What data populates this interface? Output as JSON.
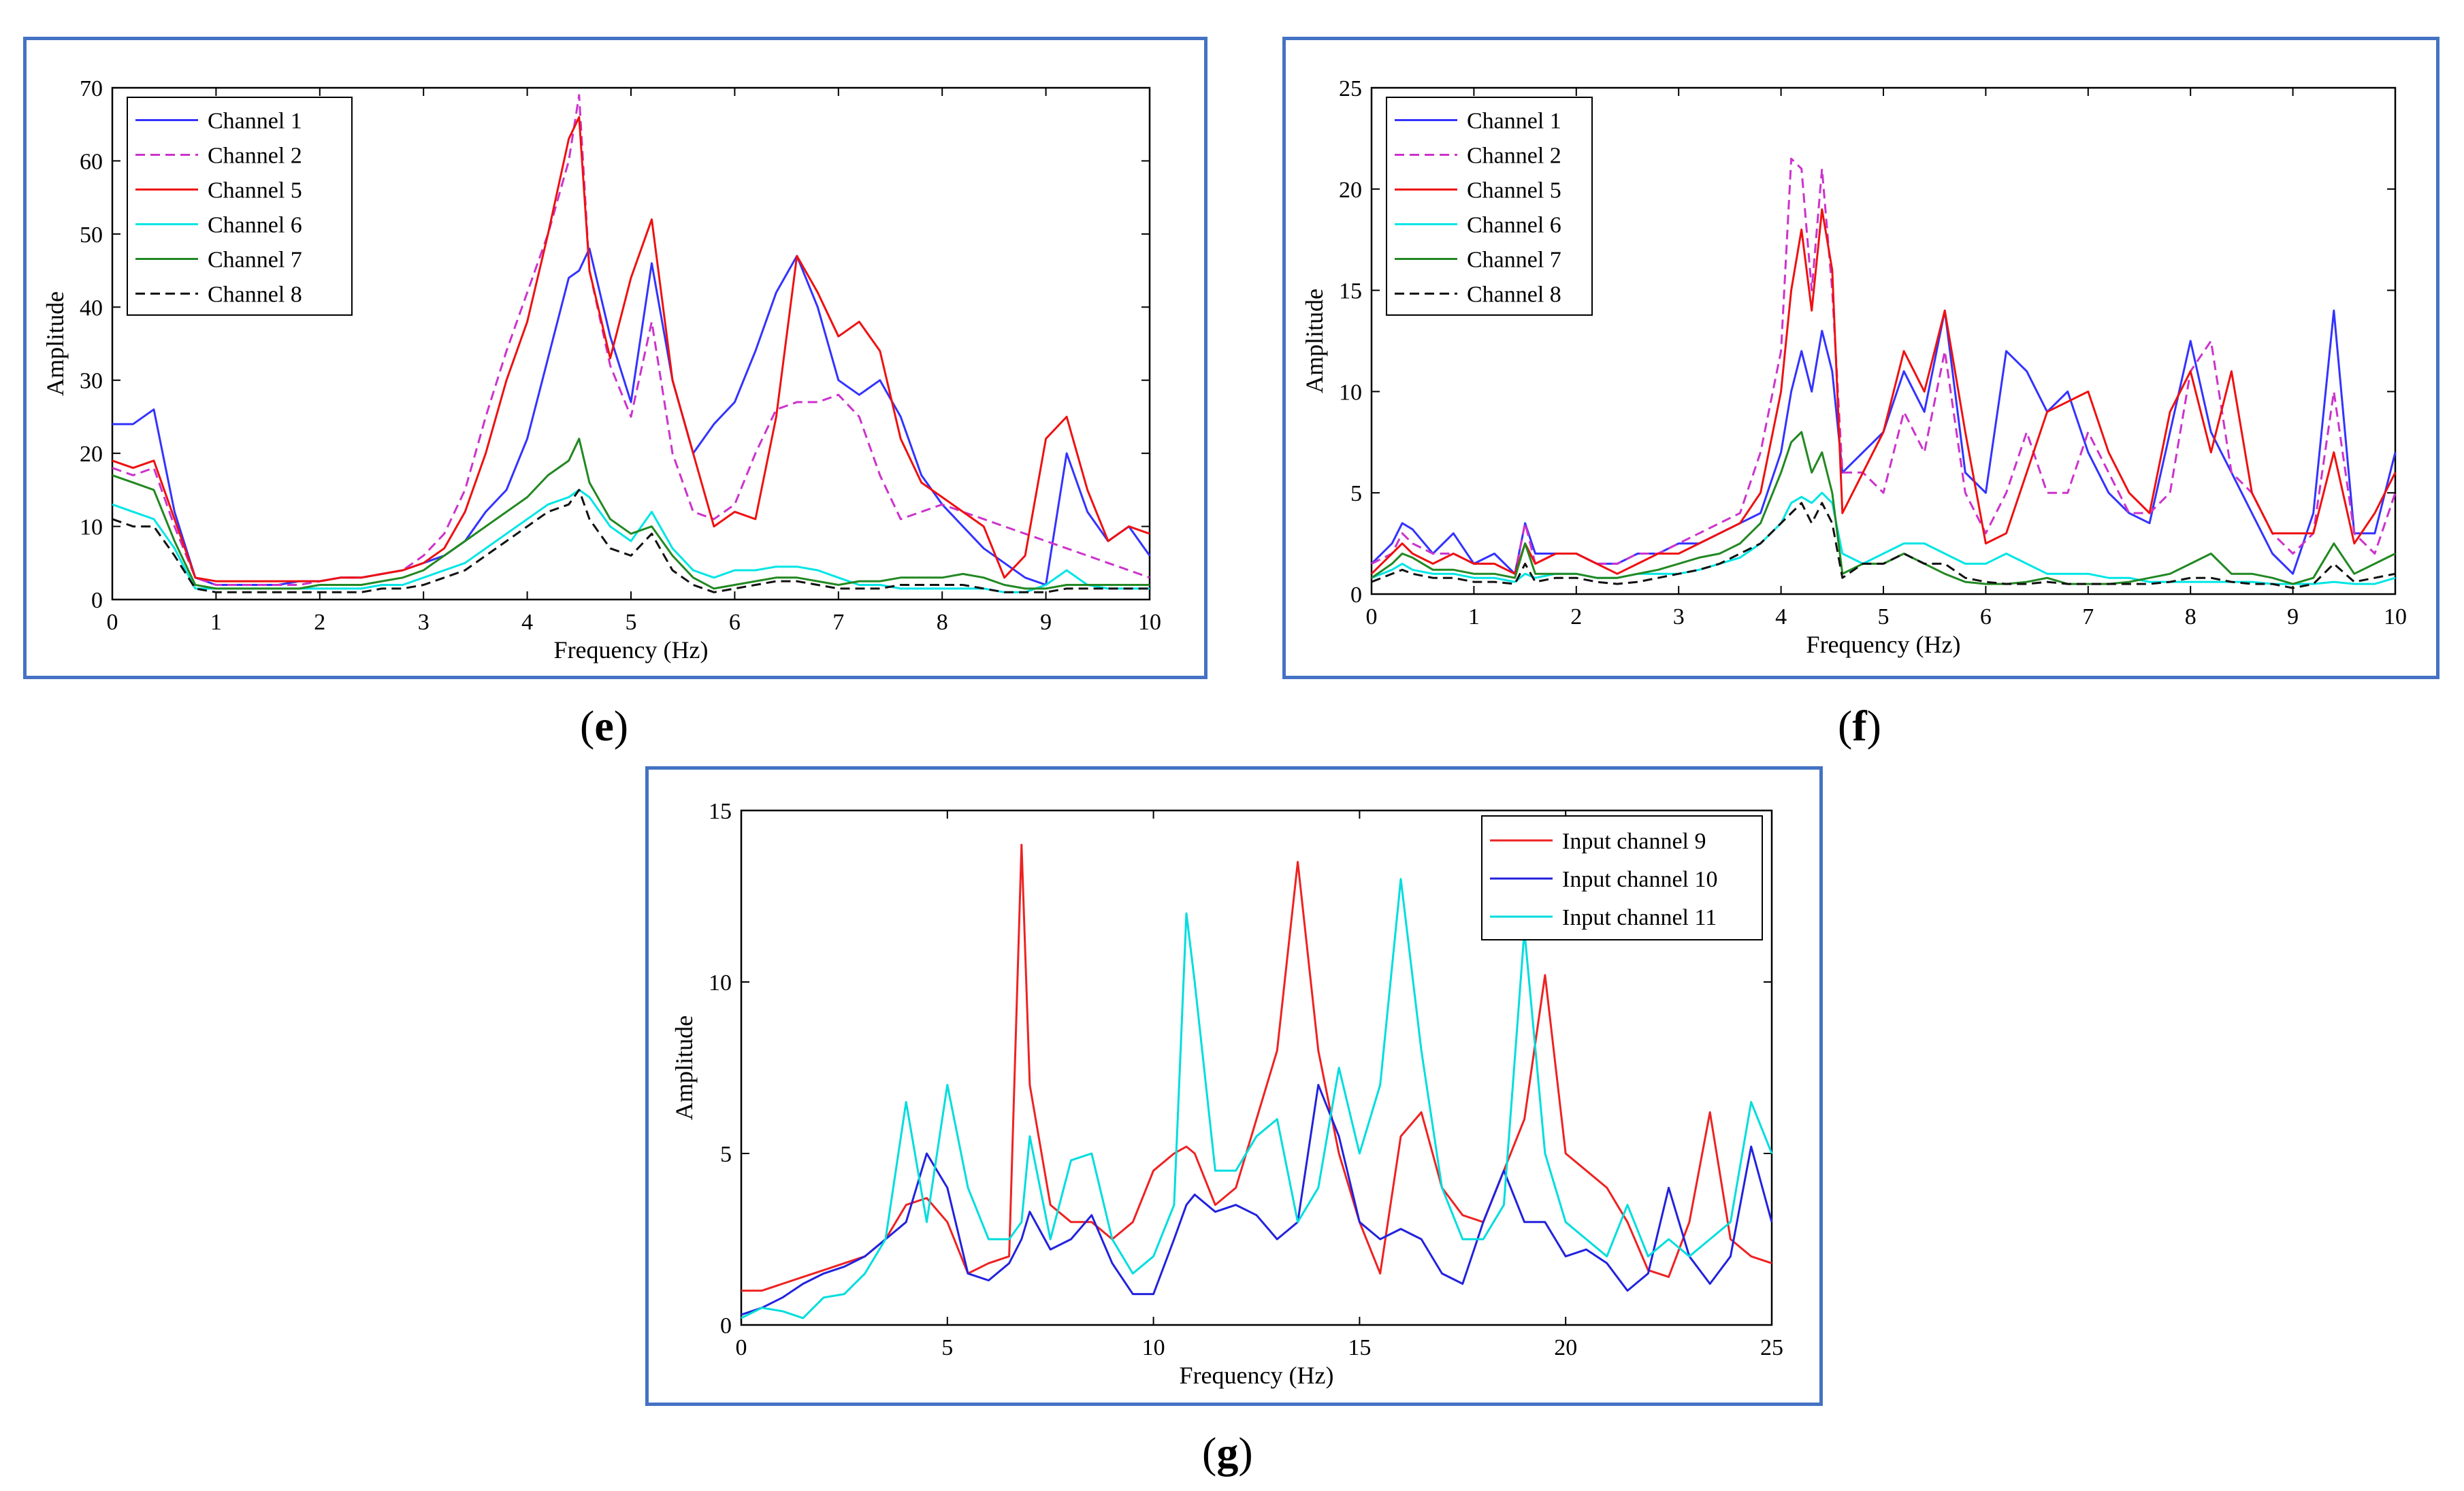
{
  "panels": {
    "e": {
      "caption": "e"
    },
    "f": {
      "caption": "f"
    },
    "g": {
      "caption": "g"
    }
  },
  "chart_data": [
    {
      "id": "e",
      "type": "line",
      "title": "",
      "xlabel": "Frequency (Hz)",
      "ylabel": "Amplitude",
      "xlim": [
        0,
        10
      ],
      "ylim": [
        0,
        70
      ],
      "xticks": [
        0,
        1,
        2,
        3,
        4,
        5,
        6,
        7,
        8,
        9,
        10
      ],
      "yticks": [
        0,
        10,
        20,
        30,
        40,
        50,
        60,
        70
      ],
      "legend_position": "top-left",
      "x": [
        0,
        0.2,
        0.4,
        0.6,
        0.8,
        1,
        1.2,
        1.4,
        1.6,
        1.8,
        2,
        2.2,
        2.4,
        2.6,
        2.8,
        3,
        3.2,
        3.4,
        3.6,
        3.8,
        4,
        4.2,
        4.4,
        4.5,
        4.6,
        4.8,
        5,
        5.2,
        5.4,
        5.6,
        5.8,
        6,
        6.2,
        6.4,
        6.6,
        6.8,
        7,
        7.2,
        7.4,
        7.6,
        7.8,
        8,
        8.2,
        8.4,
        8.6,
        8.8,
        9,
        9.2,
        9.4,
        9.6,
        9.8,
        10
      ],
      "series": [
        {
          "name": "Channel 1",
          "color": "#3333ff",
          "dash": "",
          "values": [
            24,
            24,
            26,
            12,
            3,
            2,
            2,
            2,
            2,
            2.5,
            2.5,
            3,
            3,
            3.5,
            4,
            5,
            6,
            8,
            12,
            15,
            22,
            33,
            44,
            45,
            48,
            36,
            27,
            46,
            30,
            20,
            24,
            27,
            34,
            42,
            47,
            40,
            30,
            28,
            30,
            25,
            17,
            13,
            10,
            7,
            5,
            3,
            2,
            20,
            12,
            8,
            10,
            6
          ]
        },
        {
          "name": "Channel 2",
          "color": "#cc33cc",
          "dash": "14,8",
          "values": [
            18,
            17,
            18,
            10,
            3,
            2,
            2,
            2,
            2,
            2,
            2.5,
            3,
            3,
            3.5,
            4,
            6,
            9,
            15,
            25,
            34,
            42,
            50,
            60,
            69,
            45,
            32,
            25,
            38,
            20,
            12,
            11,
            13,
            20,
            26,
            27,
            27,
            28,
            25,
            17,
            11,
            12,
            13,
            12,
            11,
            10,
            9,
            8,
            7,
            6,
            5,
            4,
            3
          ]
        },
        {
          "name": "Channel 5",
          "color": "#ee1111",
          "dash": "",
          "values": [
            19,
            18,
            19,
            11,
            3,
            2.5,
            2.5,
            2.5,
            2.5,
            2.5,
            2.5,
            3,
            3,
            3.5,
            4,
            5,
            7,
            12,
            20,
            30,
            38,
            50,
            63,
            66,
            45,
            33,
            44,
            52,
            30,
            20,
            10,
            12,
            11,
            25,
            47,
            42,
            36,
            38,
            34,
            22,
            16,
            14,
            12,
            10,
            3,
            6,
            22,
            25,
            15,
            8,
            10,
            9
          ]
        },
        {
          "name": "Channel 6",
          "color": "#00e5e5",
          "dash": "",
          "values": [
            13,
            12,
            11,
            7,
            1.5,
            1.5,
            1.5,
            1.5,
            1.5,
            1.5,
            1.5,
            1.5,
            1.5,
            2,
            2,
            3,
            4,
            5,
            7,
            9,
            11,
            13,
            14,
            15,
            14,
            10,
            8,
            12,
            7,
            4,
            3,
            4,
            4,
            4.5,
            4.5,
            4,
            3,
            2,
            2,
            1.5,
            1.5,
            1.5,
            1.5,
            1.5,
            1,
            1,
            2,
            4,
            2,
            1.5,
            1.5,
            1.5
          ]
        },
        {
          "name": "Channel 7",
          "color": "#228822",
          "dash": "",
          "values": [
            17,
            16,
            15,
            8,
            2,
            1.5,
            1.5,
            1.5,
            1.5,
            1.5,
            2,
            2,
            2,
            2.5,
            3,
            4,
            6,
            8,
            10,
            12,
            14,
            17,
            19,
            22,
            16,
            11,
            9,
            10,
            6,
            3,
            1.5,
            2,
            2.5,
            3,
            3,
            2.5,
            2,
            2.5,
            2.5,
            3,
            3,
            3,
            3.5,
            3,
            2,
            1.5,
            1.5,
            2,
            2,
            2,
            2,
            2
          ]
        },
        {
          "name": "Channel 8",
          "color": "#111111",
          "dash": "14,8",
          "values": [
            11,
            10,
            10,
            6,
            1.5,
            1,
            1,
            1,
            1,
            1,
            1,
            1,
            1,
            1.5,
            1.5,
            2,
            3,
            4,
            6,
            8,
            10,
            12,
            13,
            15,
            11,
            7,
            6,
            9,
            4,
            2,
            1,
            1.5,
            2,
            2.5,
            2.5,
            2,
            1.5,
            1.5,
            1.5,
            2,
            2,
            2,
            2,
            1.5,
            1,
            1,
            1,
            1.5,
            1.5,
            1.5,
            1.5,
            1.5
          ]
        }
      ]
    },
    {
      "id": "f",
      "type": "line",
      "title": "",
      "xlabel": "Frequency (Hz)",
      "ylabel": "Amplitude",
      "xlim": [
        0,
        10
      ],
      "ylim": [
        0,
        25
      ],
      "xticks": [
        0,
        1,
        2,
        3,
        4,
        5,
        6,
        7,
        8,
        9,
        10
      ],
      "yticks": [
        0,
        5,
        10,
        15,
        20,
        25
      ],
      "legend_position": "top-left",
      "x": [
        0,
        0.2,
        0.3,
        0.4,
        0.6,
        0.8,
        1,
        1.2,
        1.4,
        1.5,
        1.6,
        1.8,
        2,
        2.2,
        2.4,
        2.6,
        2.8,
        3,
        3.2,
        3.4,
        3.6,
        3.8,
        4,
        4.1,
        4.2,
        4.3,
        4.4,
        4.5,
        4.6,
        4.8,
        5,
        5.2,
        5.4,
        5.6,
        5.8,
        6,
        6.2,
        6.4,
        6.6,
        6.8,
        7,
        7.2,
        7.4,
        7.6,
        7.8,
        8,
        8.2,
        8.4,
        8.6,
        8.8,
        9,
        9.2,
        9.4,
        9.6,
        9.8,
        10
      ],
      "series": [
        {
          "name": "Channel 1",
          "color": "#3333ff",
          "dash": "",
          "values": [
            1.5,
            2.5,
            3.5,
            3.2,
            2,
            3,
            1.5,
            2,
            1,
            3.5,
            2,
            2,
            2,
            1.5,
            1.5,
            2,
            2,
            2.5,
            2.5,
            3,
            3.5,
            4,
            7,
            10,
            12,
            10,
            13,
            11,
            6,
            7,
            8,
            11,
            9,
            14,
            6,
            5,
            12,
            11,
            9,
            10,
            7,
            5,
            4,
            3.5,
            8,
            12.5,
            8,
            6,
            4,
            2,
            1,
            4,
            14,
            3,
            3,
            7
          ]
        },
        {
          "name": "Channel 2",
          "color": "#cc33cc",
          "dash": "14,8",
          "values": [
            1.5,
            2,
            3,
            2.5,
            2,
            2,
            1.5,
            1.5,
            1,
            3.5,
            1.5,
            2,
            2,
            1.5,
            1.5,
            2,
            2,
            2.5,
            3,
            3.5,
            4,
            7,
            12,
            21.5,
            21,
            15,
            21,
            15,
            6,
            6,
            5,
            9,
            7,
            12,
            5,
            3,
            5,
            8,
            5,
            5,
            8,
            6,
            4,
            4,
            5,
            11,
            12.5,
            6,
            5,
            3,
            2,
            3,
            10,
            3,
            2,
            5
          ]
        },
        {
          "name": "Channel 5",
          "color": "#ee1111",
          "dash": "",
          "values": [
            1,
            2,
            2.5,
            2,
            1.5,
            2,
            1.5,
            1.5,
            1,
            2.5,
            1.5,
            2,
            2,
            1.5,
            1,
            1.5,
            2,
            2,
            2.5,
            3,
            3.5,
            5,
            10,
            15,
            18,
            14,
            19,
            16,
            4,
            6,
            8,
            12,
            10,
            14,
            8,
            2.5,
            3,
            6,
            9,
            9.5,
            10,
            7,
            5,
            4,
            9,
            11,
            7,
            11,
            5,
            3,
            3,
            3,
            7,
            2.5,
            4,
            6
          ]
        },
        {
          "name": "Channel 6",
          "color": "#00e5e5",
          "dash": "",
          "values": [
            0.8,
            1.2,
            1.5,
            1.2,
            1,
            1,
            0.8,
            0.8,
            0.6,
            1,
            0.8,
            1,
            1,
            0.8,
            0.8,
            1,
            1,
            1,
            1.2,
            1.5,
            1.8,
            2.5,
            3.5,
            4.5,
            4.8,
            4.5,
            5,
            4.5,
            2,
            1.5,
            2,
            2.5,
            2.5,
            2,
            1.5,
            1.5,
            2,
            1.5,
            1,
            1,
            1,
            0.8,
            0.8,
            0.6,
            0.6,
            0.6,
            0.6,
            0.6,
            0.6,
            0.5,
            0.5,
            0.5,
            0.6,
            0.5,
            0.5,
            0.8
          ]
        },
        {
          "name": "Channel 7",
          "color": "#228822",
          "dash": "",
          "values": [
            0.8,
            1.5,
            2,
            1.8,
            1.2,
            1.2,
            1,
            1,
            0.8,
            2.5,
            1,
            1,
            1,
            0.8,
            0.8,
            1,
            1.2,
            1.5,
            1.8,
            2,
            2.5,
            3.5,
            6,
            7.5,
            8,
            6,
            7,
            5,
            1,
            1.5,
            1.5,
            2,
            1.5,
            1,
            0.6,
            0.5,
            0.5,
            0.6,
            0.8,
            0.5,
            0.5,
            0.5,
            0.6,
            0.8,
            1,
            1.5,
            2,
            1,
            1,
            0.8,
            0.5,
            0.8,
            2.5,
            1,
            1.5,
            2
          ]
        },
        {
          "name": "Channel 8",
          "color": "#111111",
          "dash": "14,8",
          "values": [
            0.6,
            1,
            1.2,
            1,
            0.8,
            0.8,
            0.6,
            0.6,
            0.5,
            1.5,
            0.6,
            0.8,
            0.8,
            0.6,
            0.5,
            0.6,
            0.8,
            1,
            1.2,
            1.5,
            2,
            2.5,
            3.5,
            4,
            4.5,
            3.5,
            4.5,
            3.5,
            0.8,
            1.5,
            1.5,
            2,
            1.5,
            1.5,
            0.8,
            0.6,
            0.5,
            0.5,
            0.6,
            0.5,
            0.5,
            0.5,
            0.5,
            0.5,
            0.6,
            0.8,
            0.8,
            0.6,
            0.5,
            0.5,
            0.3,
            0.5,
            1.5,
            0.6,
            0.8,
            1
          ]
        }
      ]
    },
    {
      "id": "g",
      "type": "line",
      "title": "",
      "xlabel": "Frequency (Hz)",
      "ylabel": "Amplitude",
      "xlim": [
        0,
        25
      ],
      "ylim": [
        0,
        15
      ],
      "xticks": [
        0,
        5,
        10,
        15,
        20,
        25
      ],
      "yticks": [
        0,
        5,
        10,
        15
      ],
      "legend_position": "top-right",
      "x": [
        0,
        0.5,
        1,
        1.5,
        2,
        2.5,
        3,
        3.5,
        4,
        4.5,
        5,
        5.5,
        6,
        6.5,
        6.8,
        7,
        7.5,
        8,
        8.5,
        9,
        9.5,
        10,
        10.5,
        10.8,
        11,
        11.5,
        12,
        12.5,
        13,
        13.5,
        14,
        14.5,
        15,
        15.5,
        16,
        16.5,
        17,
        17.5,
        18,
        18.5,
        19,
        19.5,
        20,
        20.5,
        21,
        21.5,
        22,
        22.5,
        23,
        23.5,
        24,
        24.5,
        25
      ],
      "series": [
        {
          "name": "Input  channel 9",
          "color": "#ee2222",
          "dash": "",
          "values": [
            1,
            1,
            1.2,
            1.4,
            1.6,
            1.8,
            2,
            2.5,
            3.5,
            3.7,
            3,
            1.5,
            1.8,
            2,
            14,
            7,
            3.5,
            3,
            3,
            2.5,
            3,
            4.5,
            5,
            5.2,
            5,
            3.5,
            4,
            6,
            8,
            13.5,
            8,
            5,
            3,
            1.5,
            5.5,
            6.2,
            4,
            3.2,
            3,
            4.5,
            6,
            10.2,
            5,
            4.5,
            4,
            3,
            1.6,
            1.4,
            3,
            6.2,
            2.5,
            2,
            1.8
          ]
        },
        {
          "name": "Input  channel 10",
          "color": "#2222dd",
          "dash": "",
          "values": [
            0.3,
            0.5,
            0.8,
            1.2,
            1.5,
            1.7,
            2,
            2.5,
            3,
            5,
            4,
            1.5,
            1.3,
            1.8,
            2.5,
            3.3,
            2.2,
            2.5,
            3.2,
            1.8,
            0.9,
            0.9,
            2.5,
            3.5,
            3.8,
            3.3,
            3.5,
            3.2,
            2.5,
            3,
            7,
            5.5,
            3,
            2.5,
            2.8,
            2.5,
            1.5,
            1.2,
            3,
            4.5,
            3,
            3,
            2,
            2.2,
            1.8,
            1,
            1.5,
            4,
            2,
            1.2,
            2,
            5.2,
            3
          ]
        },
        {
          "name": "Input  channel 11",
          "color": "#00dddd",
          "dash": "",
          "values": [
            0.2,
            0.5,
            0.4,
            0.2,
            0.8,
            0.9,
            1.5,
            2.5,
            6.5,
            3,
            7,
            4,
            2.5,
            2.5,
            3,
            5.5,
            2.5,
            4.8,
            5,
            2.5,
            1.5,
            2,
            3.5,
            12,
            10,
            4.5,
            4.5,
            5.5,
            6,
            3,
            4,
            7.5,
            5,
            7,
            13,
            8,
            4,
            2.5,
            2.5,
            3.5,
            11.5,
            5,
            3,
            2.5,
            2,
            3.5,
            2,
            2.5,
            2,
            2.5,
            3,
            6.5,
            5
          ]
        }
      ]
    }
  ]
}
